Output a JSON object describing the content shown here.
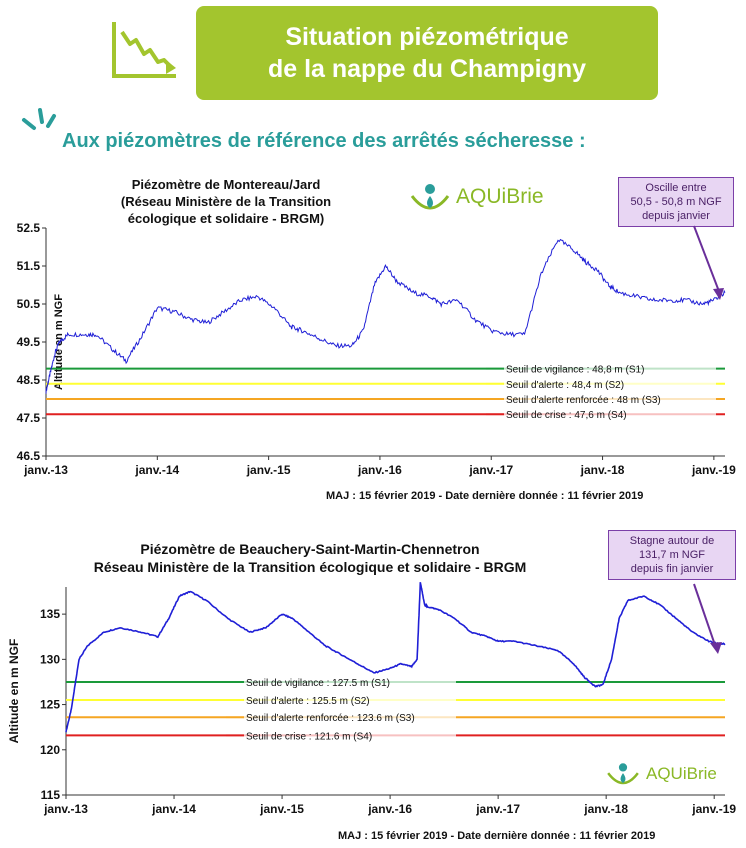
{
  "header": {
    "title_line1": "Situation piézométrique",
    "title_line2": "de la nappe du Champigny",
    "subtitle": "Aux piézomètres de référence des arrêtés sécheresse :"
  },
  "logo": {
    "text_a": "AQUi",
    "text_b": "Brie"
  },
  "colors": {
    "banner": "#a3c52e",
    "teal": "#2a9d9a",
    "line": "#1f1fd6",
    "s1": "#1a9a3a",
    "s2": "#ffff33",
    "s3": "#f5a623",
    "s4": "#e02020",
    "callout_bg": "#e8d6f3"
  },
  "charts": [
    {
      "title": [
        "Piézomètre de Montereau/Jard",
        "(Réseau Ministère de la Transition",
        "écologique et solidaire - BRGM)"
      ],
      "callout": [
        "Oscille entre",
        "50,5 - 50,8 m NGF",
        "depuis janvier"
      ],
      "maj": "MAJ : 15 février 2019 -  Date dernière donnée  : 11 février 2019"
    },
    {
      "title": [
        "Piézomètre de Beauchery-Saint-Martin-Chennetron",
        "Réseau Ministère de la Transition écologique et solidaire - BRGM"
      ],
      "callout": [
        "Stagne autour de",
        "131,7 m NGF",
        "depuis fin janvier"
      ],
      "maj": "MAJ : 15 février 2019 -  Date dernière donnée : 11 février 2019"
    }
  ],
  "chart_data": [
    {
      "type": "line",
      "ylabel": "Altitude en m NGF",
      "ylim": [
        46.5,
        52.5
      ],
      "yticks": [
        46.5,
        47.5,
        48.5,
        49.5,
        50.5,
        51.5,
        52.5
      ],
      "x_categories": [
        "janv.-13",
        "janv.-14",
        "janv.-15",
        "janv.-16",
        "janv.-17",
        "janv.-18",
        "janv.-19"
      ],
      "series": [
        {
          "x": [
            2013.0,
            2013.04,
            2013.08,
            2013.12,
            2013.2,
            2013.35,
            2013.45,
            2013.6,
            2013.72,
            2013.85,
            2014.0,
            2014.15,
            2014.3,
            2014.45,
            2014.6,
            2014.75,
            2014.9,
            2015.05,
            2015.2,
            2015.3,
            2015.45,
            2015.6,
            2015.75,
            2015.85,
            2015.95,
            2016.05,
            2016.15,
            2016.3,
            2016.45,
            2016.55,
            2016.7,
            2016.85,
            2017.0,
            2017.15,
            2017.3,
            2017.45,
            2017.6,
            2017.75,
            2017.85,
            2017.95,
            2018.05,
            2018.15,
            2018.3,
            2018.45,
            2018.6,
            2018.75,
            2018.9,
            2019.0,
            2019.1
          ],
          "y": [
            48.2,
            48.7,
            49.2,
            49.5,
            49.7,
            49.7,
            49.7,
            49.3,
            49.0,
            49.6,
            50.4,
            50.3,
            50.1,
            50.0,
            50.3,
            50.6,
            50.7,
            50.4,
            49.9,
            49.8,
            49.6,
            49.4,
            49.4,
            49.8,
            51.0,
            51.5,
            51.1,
            50.8,
            50.7,
            50.5,
            50.6,
            50.1,
            49.8,
            49.7,
            49.7,
            51.3,
            52.2,
            51.9,
            51.6,
            51.4,
            51.0,
            50.8,
            50.7,
            50.6,
            50.6,
            50.6,
            50.5,
            50.6,
            50.8
          ],
          "color": "#1f1fd6"
        }
      ],
      "thresholds": [
        {
          "value": 48.8,
          "label": "Seuil de vigilance : 48,8 m (S1)",
          "color": "#1a9a3a"
        },
        {
          "value": 48.4,
          "label": "Seuil d'alerte : 48,4 m (S2)",
          "color": "#ffff33"
        },
        {
          "value": 48.0,
          "label": "Seuil d'alerte renforcée : 48 m (S3)",
          "color": "#f5a623"
        },
        {
          "value": 47.6,
          "label": "Seuil de crise : 47,6 m (S4)",
          "color": "#e02020"
        }
      ]
    },
    {
      "type": "line",
      "ylabel": "Altitude en m NGF",
      "ylim": [
        115,
        138
      ],
      "yticks": [
        115,
        120,
        125,
        130,
        135
      ],
      "x_categories": [
        "janv.-13",
        "janv.-14",
        "janv.-15",
        "janv.-16",
        "janv.-17",
        "janv.-18",
        "janv.-19"
      ],
      "series": [
        {
          "x": [
            2013.0,
            2013.05,
            2013.12,
            2013.2,
            2013.35,
            2013.5,
            2013.7,
            2013.85,
            2013.95,
            2014.05,
            2014.15,
            2014.3,
            2014.5,
            2014.7,
            2014.85,
            2015.0,
            2015.1,
            2015.25,
            2015.4,
            2015.55,
            2015.7,
            2015.85,
            2016.0,
            2016.1,
            2016.2,
            2016.25,
            2016.28,
            2016.32,
            2016.35,
            2016.45,
            2016.6,
            2016.75,
            2016.9,
            2017.0,
            2017.15,
            2017.35,
            2017.55,
            2017.7,
            2017.8,
            2017.9,
            2017.97,
            2018.05,
            2018.12,
            2018.2,
            2018.35,
            2018.5,
            2018.65,
            2018.8,
            2018.95,
            2019.05,
            2019.1
          ],
          "y": [
            122.0,
            124.5,
            130.0,
            131.5,
            133.0,
            133.5,
            133.0,
            132.5,
            134.5,
            137.0,
            137.5,
            136.5,
            134.5,
            133.0,
            133.5,
            135.0,
            134.5,
            133.0,
            131.5,
            130.5,
            129.5,
            128.5,
            129.0,
            129.5,
            129.2,
            130.0,
            138.5,
            136.0,
            135.8,
            135.5,
            134.5,
            133.0,
            132.5,
            132.0,
            132.0,
            131.5,
            131.0,
            129.5,
            128.0,
            127.0,
            127.2,
            130.0,
            134.5,
            136.5,
            137.0,
            136.0,
            134.5,
            133.0,
            132.0,
            131.7,
            131.7
          ],
          "color": "#1f1fd6"
        }
      ],
      "thresholds": [
        {
          "value": 127.5,
          "label": "Seuil de vigilance : 127.5 m (S1)",
          "color": "#1a9a3a"
        },
        {
          "value": 125.5,
          "label": "Seuil d'alerte : 125.5 m (S2)",
          "color": "#ffff33"
        },
        {
          "value": 123.6,
          "label": "Seuil d'alerte renforcée : 123.6 m (S3)",
          "color": "#f5a623"
        },
        {
          "value": 121.6,
          "label": "Seuil de crise : 121.6 m (S4)",
          "color": "#e02020"
        }
      ]
    }
  ]
}
